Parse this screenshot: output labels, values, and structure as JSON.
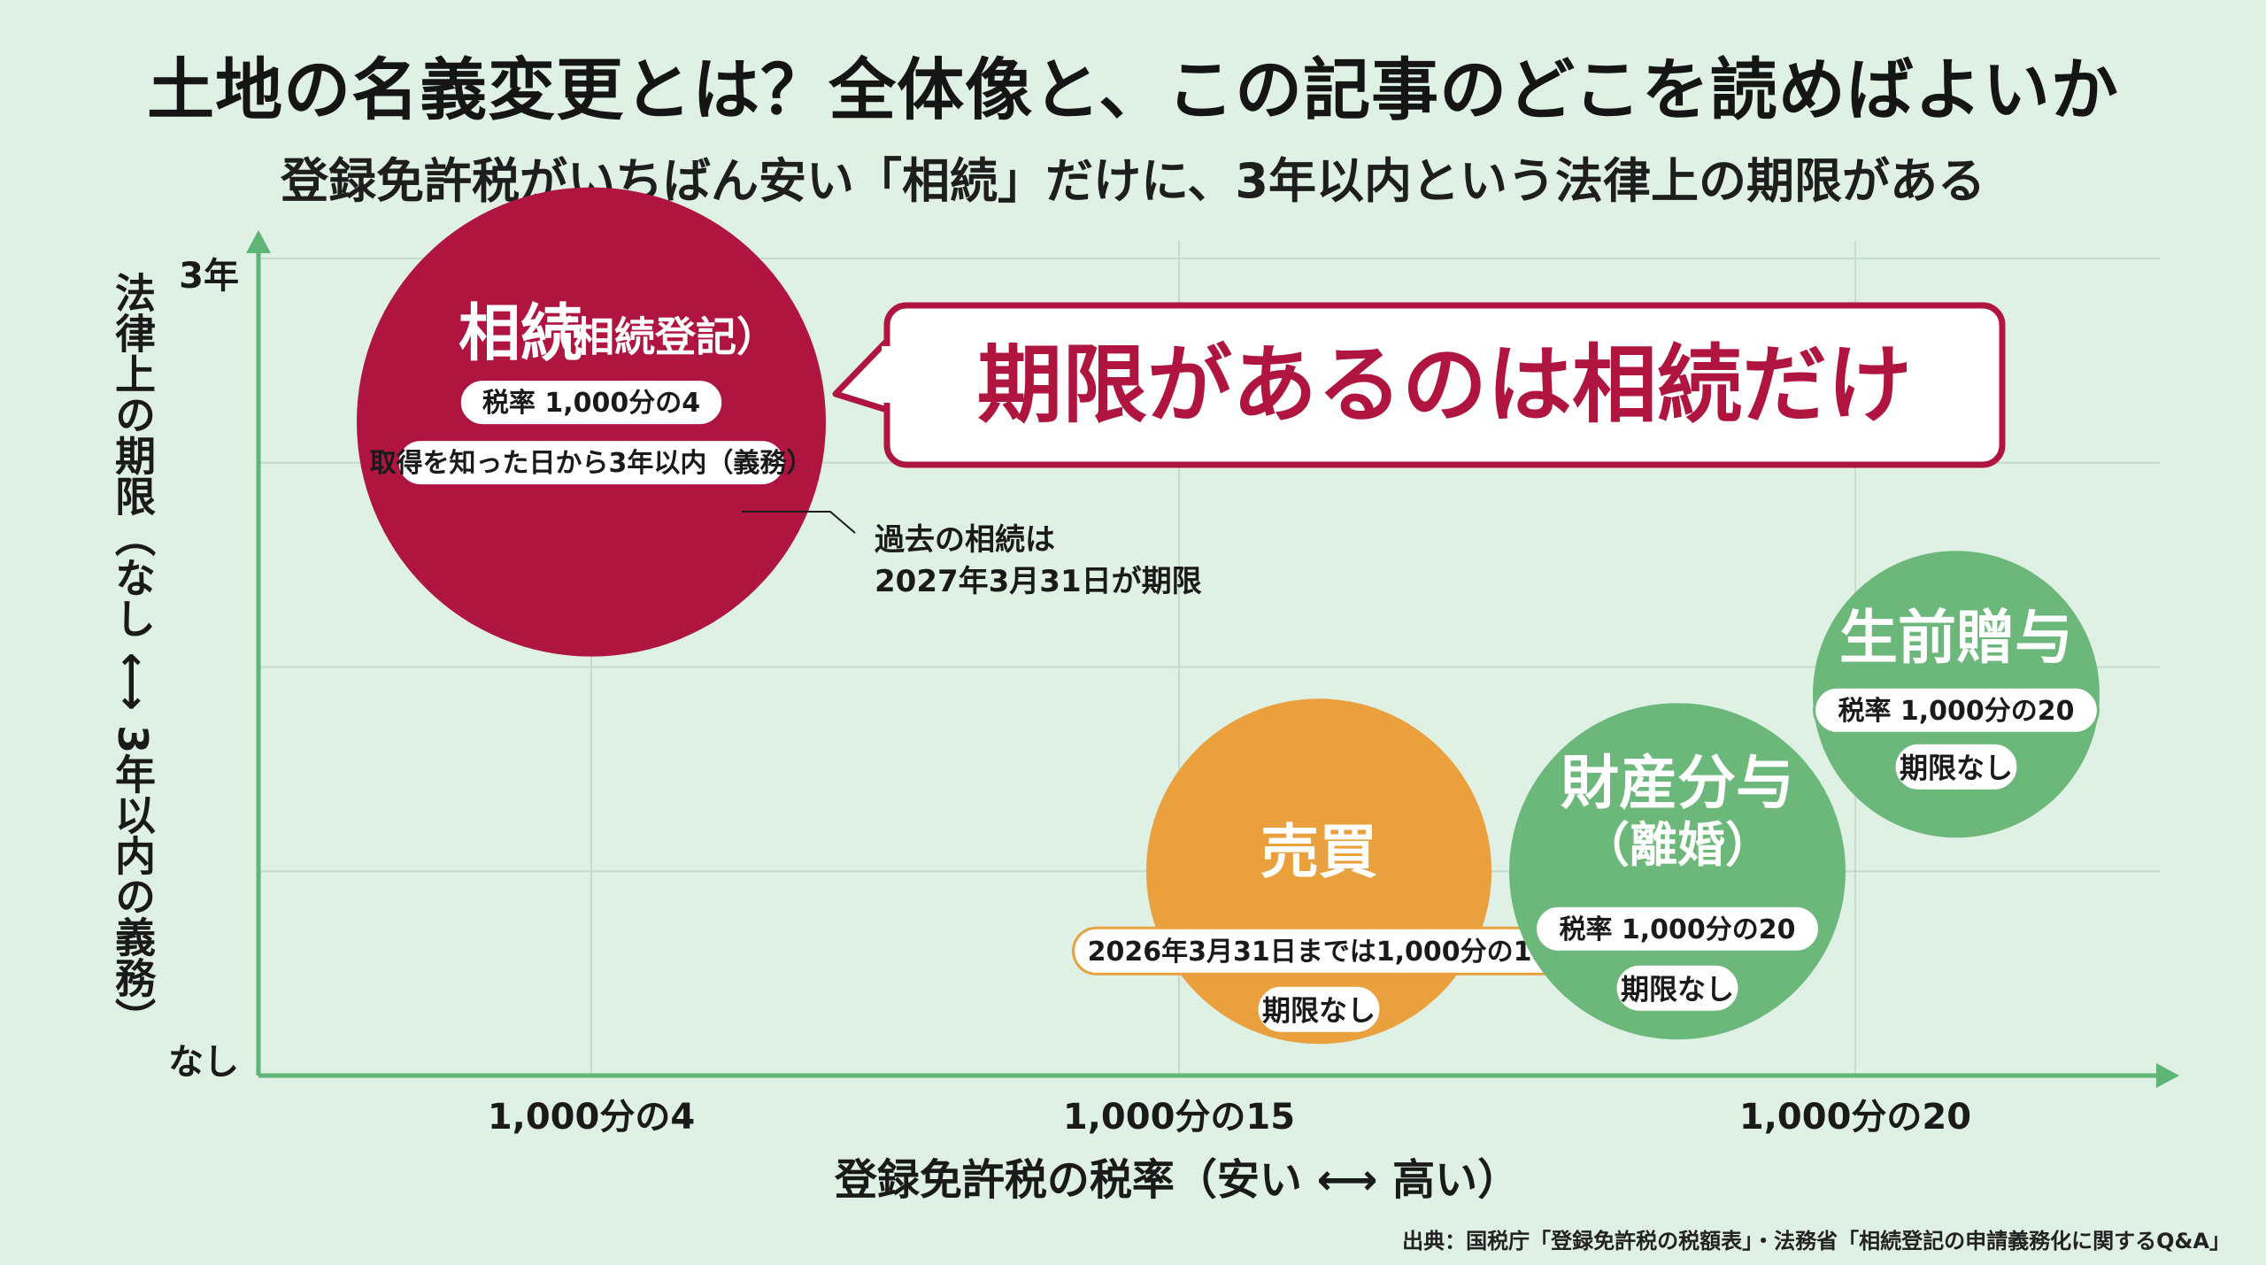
{
  "header": {
    "title": "土地の名義変更とは？全体像と、この記事のどこを読めばよいか",
    "subtitle": "登録免許税がいちばん安い「相続」だけに、3年以内という法律上の期限がある"
  },
  "source": "出典：国税庁「登録免許税の税額表」・法務省「相続登記の申請義務化に関するQ&A」",
  "colors": {
    "background": "#dff0e4",
    "axis": "#5fb575",
    "grid": "#c4dccb",
    "inheritance": "#b01540",
    "sale": "#eba03e",
    "divorce": "#6cb77a",
    "gift": "#6cb77a"
  },
  "chart_data": {
    "type": "scatter",
    "xlabel": "登録免許税の税率（安い ⟷ 高い）",
    "ylabel": "法律上の期限（なし ⟷ 3年以内の義務）",
    "xticks": [
      "1,000分の4",
      "1,000分の15",
      "1,000分の20"
    ],
    "yticks": [
      "3年",
      "なし"
    ],
    "grid": true,
    "points": [
      {
        "name": "相続",
        "sub": "（相続登記）",
        "x": 4,
        "y": 2.4,
        "color": "#b01540",
        "badges": [
          "税率 1,000分の4",
          "取得を知った日から3年以内（義務）"
        ]
      },
      {
        "name": "売買",
        "sub": "",
        "x": 15,
        "y": 0.75,
        "color": "#eba03e",
        "badges": [
          "2026年3月31日までは1,000分の15",
          "期限なし"
        ]
      },
      {
        "name": "財産分与",
        "sub": "（離婚）",
        "x": 20,
        "y": 0.75,
        "color": "#6cb77a",
        "badges": [
          "税率 1,000分の20",
          "期限なし"
        ]
      },
      {
        "name": "生前贈与",
        "sub": "",
        "x": 20,
        "y": 1.4,
        "color": "#6cb77a",
        "badges": [
          "税率 1,000分の20",
          "期限なし"
        ]
      }
    ],
    "callout": "期限があるのは相続だけ",
    "annotation": [
      "過去の相続は",
      "2027年3月31日が期限"
    ]
  }
}
